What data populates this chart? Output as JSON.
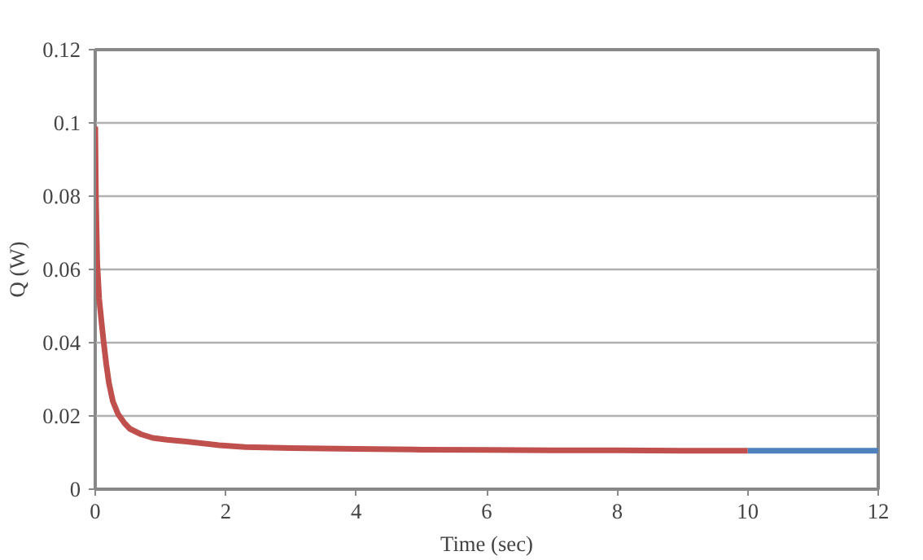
{
  "chart_data": {
    "type": "line",
    "xlabel": "Time (sec)",
    "ylabel": "Q (W)",
    "xlim": [
      0,
      12
    ],
    "ylim": [
      0,
      0.12
    ],
    "xticks": [
      0,
      2,
      4,
      6,
      8,
      10,
      12
    ],
    "yticks": [
      0,
      0.02,
      0.04,
      0.06,
      0.08,
      0.1,
      0.12
    ],
    "grid": "y",
    "marker": "none",
    "line_style": "solid",
    "series": [
      {
        "color": "#4f81bd",
        "x": [
          10,
          11,
          12
        ],
        "values": [
          0.0105,
          0.0105,
          0.0105
        ]
      },
      {
        "color": "#c0504d",
        "x": [
          0,
          0.01,
          0.03,
          0.06,
          0.1,
          0.13,
          0.17,
          0.21,
          0.27,
          0.35,
          0.45,
          0.53,
          0.7,
          0.88,
          1.1,
          1.4,
          1.9,
          2.3,
          3,
          4,
          5,
          6,
          7,
          8,
          9,
          10
        ],
        "values": [
          0.099,
          0.08,
          0.062,
          0.052,
          0.045,
          0.04,
          0.034,
          0.029,
          0.024,
          0.0205,
          0.018,
          0.0165,
          0.015,
          0.014,
          0.0135,
          0.013,
          0.012,
          0.0115,
          0.0112,
          0.011,
          0.0108,
          0.0107,
          0.0106,
          0.0106,
          0.0105,
          0.0105
        ]
      }
    ]
  }
}
